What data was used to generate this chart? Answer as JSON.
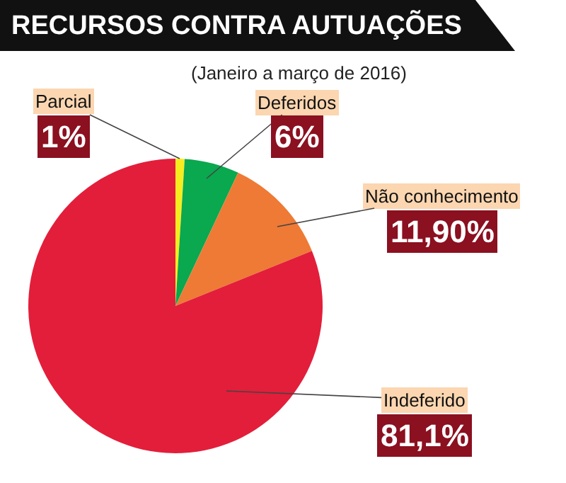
{
  "chart_data": {
    "type": "pie",
    "title": "RECURSOS CONTRA AUTUAÇÕES",
    "subtitle": "(Janeiro a março de 2016)",
    "categories": [
      "Parcial",
      "Deferidos",
      "Não conhecimento",
      "Indeferido"
    ],
    "values": [
      1,
      6,
      11.9,
      81.1
    ],
    "value_labels": [
      "1%",
      "6%",
      "11,90%",
      "81,1%"
    ],
    "colors": [
      "#f7ec1f",
      "#0aa84f",
      "#ee7a35",
      "#e31e3a"
    ],
    "legend": false
  }
}
